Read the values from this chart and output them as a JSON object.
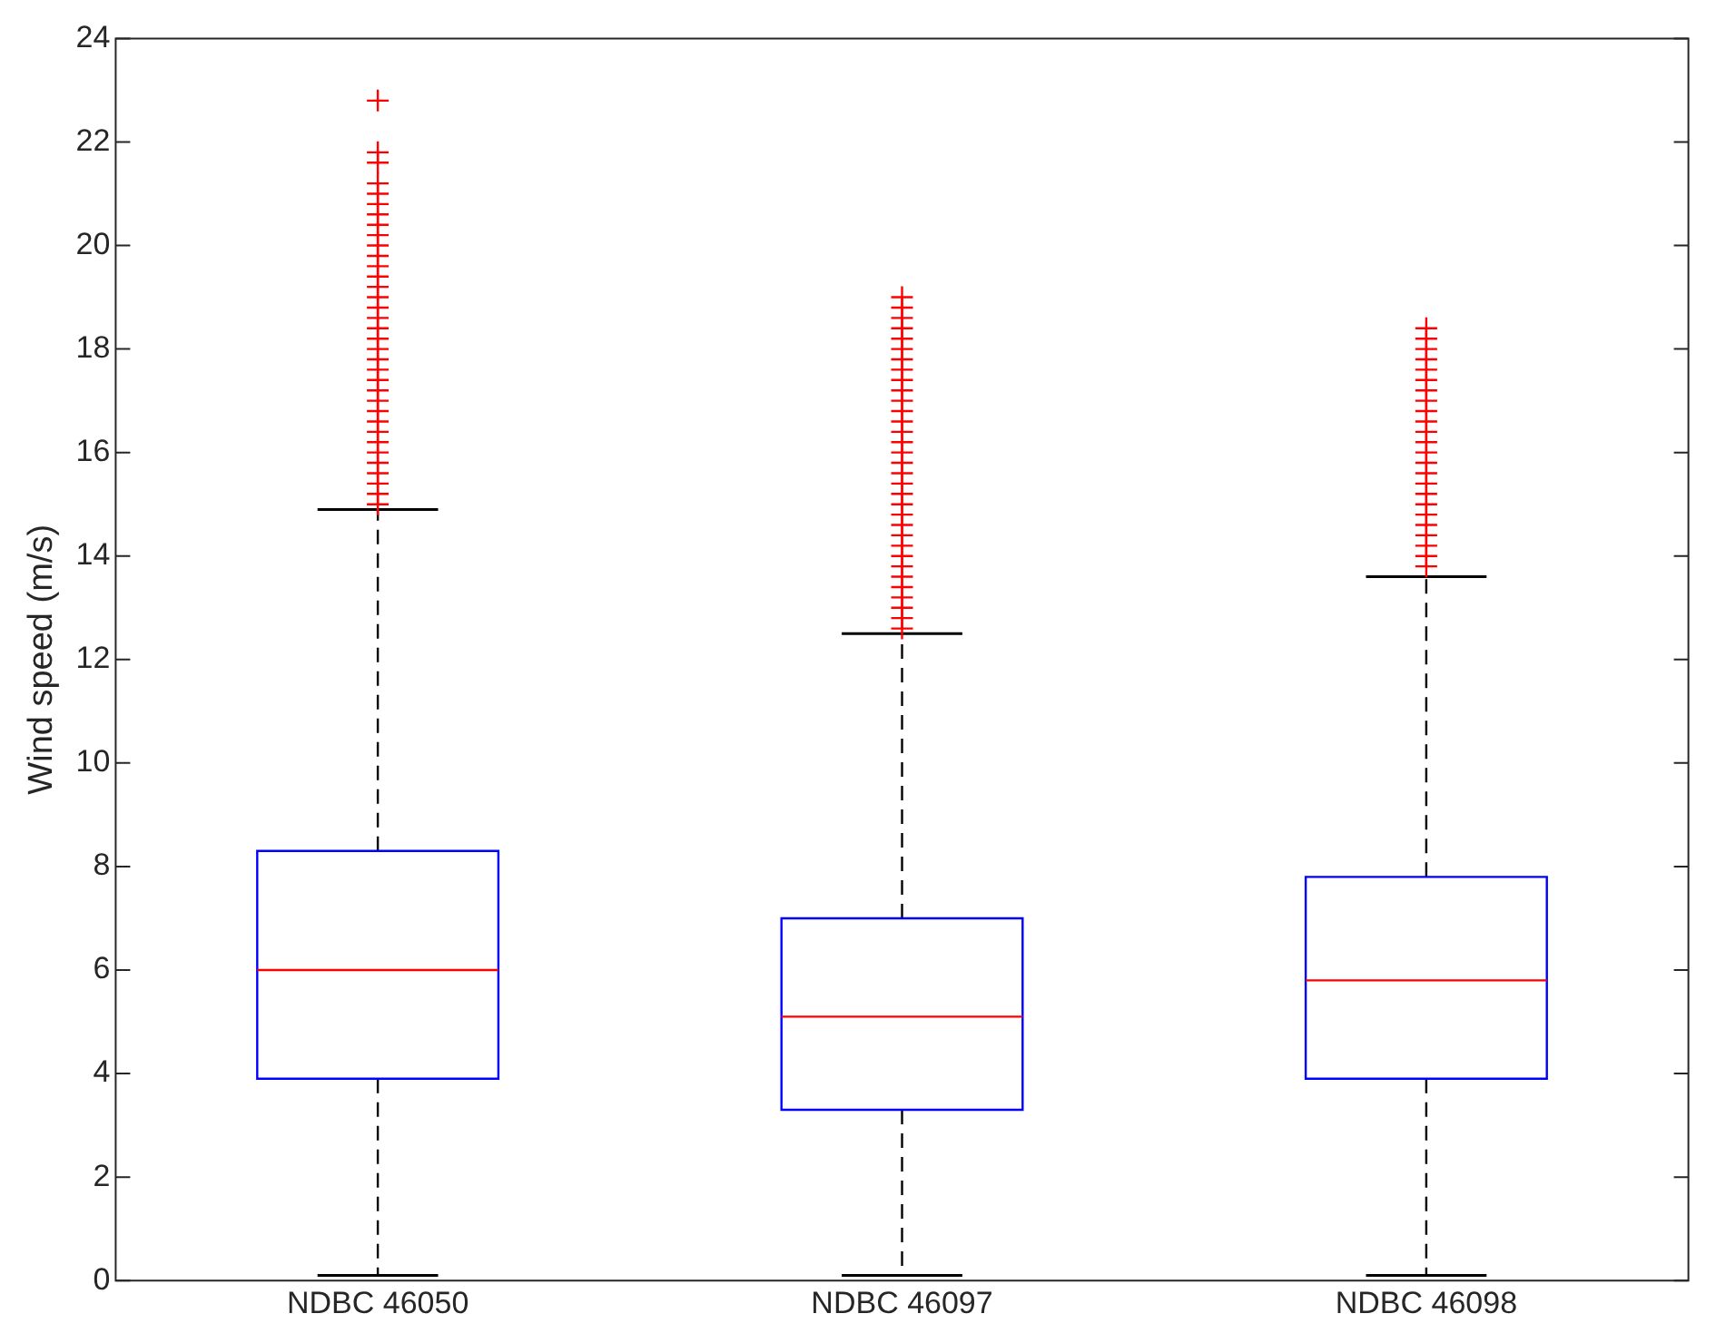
{
  "chart_data": {
    "type": "box",
    "ylabel": "Wind speed (m/s)",
    "categories": [
      "NDBC 46050",
      "NDBC 46097",
      "NDBC 46098"
    ],
    "ylim": [
      0,
      24
    ],
    "yticks": [
      0,
      2,
      4,
      6,
      8,
      10,
      12,
      14,
      16,
      18,
      20,
      22,
      24
    ],
    "marker": "cross",
    "line_style": "dashed",
    "series": [
      {
        "color": "#0000ff",
        "boxes": [
          {
            "low": 0.1,
            "q1": 3.9,
            "median": 6.0,
            "q3": 8.3,
            "high": 14.9,
            "outliers": [
              15.0,
              15.2,
              15.4,
              15.6,
              15.8,
              16.0,
              16.2,
              16.4,
              16.6,
              16.8,
              17.0,
              17.2,
              17.4,
              17.6,
              17.8,
              18.0,
              18.2,
              18.4,
              18.6,
              18.8,
              19.0,
              19.2,
              19.4,
              19.6,
              19.8,
              20.0,
              20.2,
              20.4,
              20.6,
              20.8,
              21.0,
              21.2,
              21.6,
              21.8,
              22.8
            ]
          },
          {
            "low": 0.1,
            "q1": 3.3,
            "median": 5.1,
            "q3": 7.0,
            "high": 12.5,
            "outliers": [
              12.6,
              12.8,
              13.0,
              13.2,
              13.4,
              13.6,
              13.8,
              14.0,
              14.2,
              14.4,
              14.6,
              14.8,
              15.0,
              15.2,
              15.4,
              15.6,
              15.8,
              16.0,
              16.2,
              16.4,
              16.6,
              16.8,
              17.0,
              17.2,
              17.4,
              17.6,
              17.8,
              18.0,
              18.2,
              18.4,
              18.6,
              18.8,
              19.0
            ]
          },
          {
            "low": 0.1,
            "q1": 3.9,
            "median": 5.8,
            "q3": 7.8,
            "high": 13.6,
            "outliers": [
              13.8,
              14.0,
              14.2,
              14.4,
              14.6,
              14.8,
              15.0,
              15.2,
              15.4,
              15.6,
              15.8,
              16.0,
              16.2,
              16.4,
              16.6,
              16.8,
              17.0,
              17.2,
              17.4,
              17.6,
              17.8,
              18.0,
              18.2,
              18.4
            ]
          }
        ]
      }
    ]
  }
}
